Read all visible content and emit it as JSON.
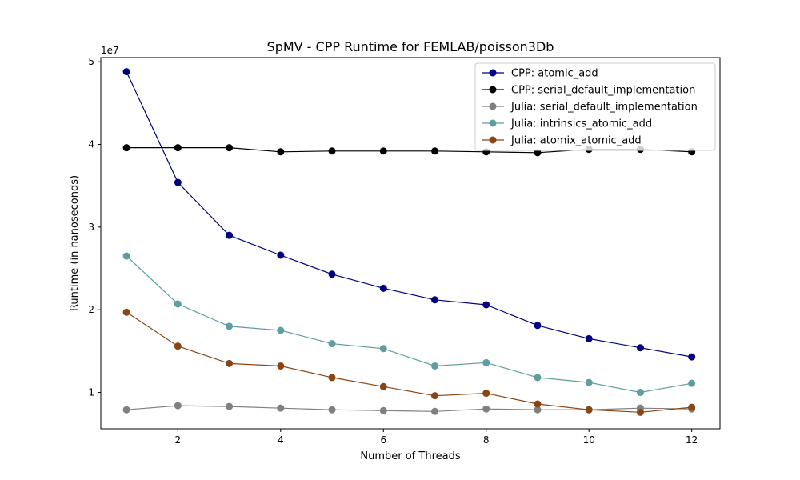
{
  "chart_data": {
    "type": "line",
    "title": "SpMV - CPP Runtime for FEMLAB/poisson3Db",
    "xlabel": "Number of Threads",
    "ylabel": "Runtime (in nanoseconds)",
    "y_multiplier_label": "1e7",
    "xlim": [
      0.5,
      12.55
    ],
    "ylim": [
      5.6,
      50.5
    ],
    "x_ticks": [
      2,
      4,
      6,
      8,
      10,
      12
    ],
    "y_ticks": [
      10,
      20,
      30,
      40,
      50
    ],
    "y_tick_labels": [
      "1",
      "2",
      "3",
      "4",
      "5"
    ],
    "grid": false,
    "legend_position": "top-right",
    "x": [
      1,
      2,
      3,
      4,
      5,
      6,
      7,
      8,
      9,
      10,
      11,
      12
    ],
    "series": [
      {
        "name": "CPP: atomic_add",
        "color": "#000080",
        "values": [
          48.8,
          35.4,
          29.0,
          26.6,
          24.3,
          22.6,
          21.2,
          20.6,
          18.1,
          16.5,
          15.4,
          14.3
        ]
      },
      {
        "name": "CPP: serial_default_implementation",
        "color": "#000000",
        "values": [
          39.6,
          39.6,
          39.6,
          39.1,
          39.2,
          39.2,
          39.2,
          39.1,
          39.0,
          39.4,
          39.4,
          39.1
        ]
      },
      {
        "name": "Julia: serial_default_implementation",
        "color": "#808080",
        "values": [
          7.9,
          8.4,
          8.3,
          8.1,
          7.9,
          7.8,
          7.7,
          8.0,
          7.9,
          7.9,
          8.1,
          8.0
        ]
      },
      {
        "name": "Julia: intrinsics_atomic_add",
        "color": "#5f9ea0",
        "values": [
          26.5,
          20.7,
          18.0,
          17.5,
          15.9,
          15.3,
          13.2,
          13.6,
          11.8,
          11.2,
          10.0,
          11.1
        ]
      },
      {
        "name": "Julia: atomix_atomic_add",
        "color": "#8b4513",
        "values": [
          19.7,
          15.6,
          13.5,
          13.2,
          11.8,
          10.7,
          9.6,
          9.9,
          8.6,
          7.9,
          7.6,
          8.2
        ]
      }
    ]
  }
}
